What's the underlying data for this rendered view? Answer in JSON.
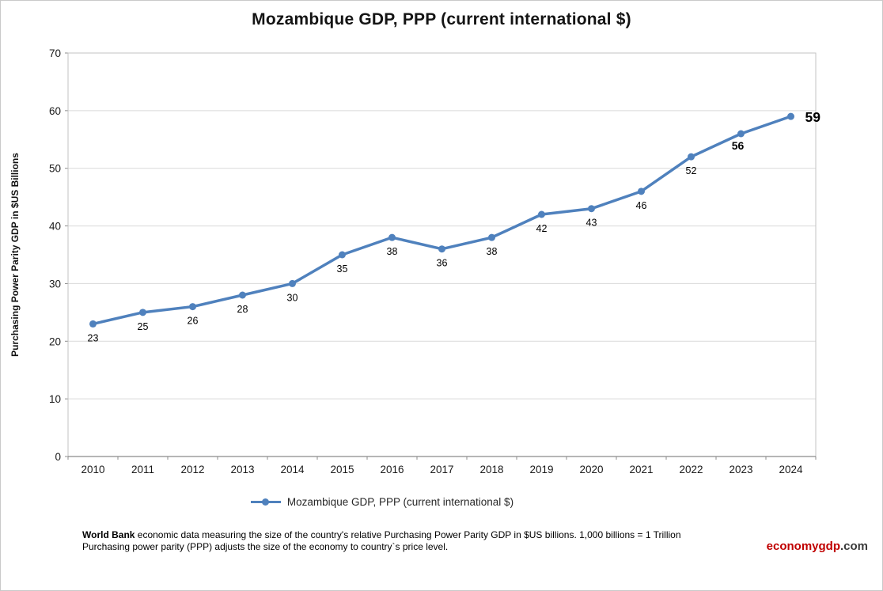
{
  "chart_data": {
    "type": "line",
    "title": "Mozambique GDP, PPP (current international $)",
    "x": [
      2010,
      2011,
      2012,
      2013,
      2014,
      2015,
      2016,
      2017,
      2018,
      2019,
      2020,
      2021,
      2022,
      2023,
      2024
    ],
    "series": [
      {
        "name": "Mozambique GDP, PPP (current international $)",
        "values": [
          23,
          25,
          26,
          28,
          30,
          35,
          38,
          36,
          38,
          42,
          43,
          46,
          52,
          56,
          59
        ]
      }
    ],
    "xlabel": "",
    "ylabel": "Purchasing Power Parity GDP in $US Billions",
    "ylim": [
      0,
      70
    ],
    "ytick_step": 10,
    "grid": true,
    "legend_position": "bottom",
    "line_color": "#4F81BD"
  },
  "legend": {
    "label": "Mozambique GDP, PPP (current international $)"
  },
  "footer": {
    "bold_lead": "World Bank",
    "line1": " economic data  measuring the size of the country's relative  Purchasing Power Parity GDP in $US billions. 1,000 billions = 1 Trillion",
    "line2": "Purchasing power parity (PPP) adjusts the size of the economy to country`s price level.",
    "brand_name": "economygdp",
    "brand_tld": ".com",
    "brand_color": "#C00000"
  }
}
